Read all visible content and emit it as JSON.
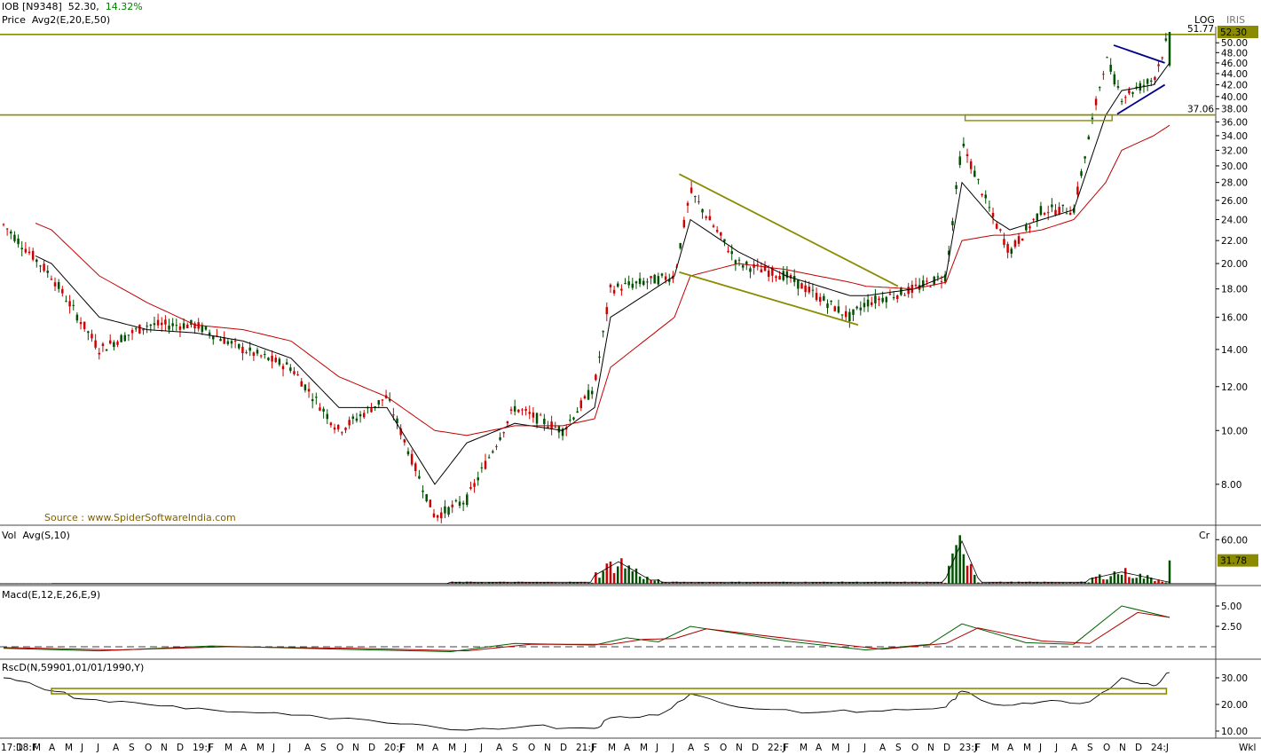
{
  "header": {
    "symbol": "IOB [N9348]",
    "last": "52.30,",
    "change": "14.32%",
    "price_label": "Price",
    "avg_label": "Avg2(E,20,E,50)",
    "scale_log": "LOG",
    "scale_iris": "IRIS"
  },
  "source_note": "Source : www.SpiderSoftwareIndia.com",
  "panels": {
    "volume": {
      "label": "Vol",
      "avg": "Avg(S,10)",
      "unit": "Cr",
      "tick": "60.00",
      "last_badge": "31.78"
    },
    "macd": {
      "label": "Macd(E,12,E,26,E,9)",
      "ticks": [
        "5.00",
        "2.50"
      ]
    },
    "rsc": {
      "label": "RscD(N,59901,01/01/1990,Y)",
      "ticks": [
        "30.00",
        "20.00",
        "10.00"
      ]
    }
  },
  "badges": {
    "last_price": "52.30",
    "level_top": "51.77",
    "level_bottom": "37.06"
  },
  "price_ticks": [
    "50.00",
    "48.00",
    "46.00",
    "44.00",
    "42.00",
    "40.00",
    "38.00",
    "36.00",
    "34.00",
    "32.00",
    "30.00",
    "28.00",
    "26.00",
    "24.00",
    "22.00",
    "20.00",
    "18.00",
    "16.00",
    "14.00",
    "12.00",
    "10.00",
    "8.00"
  ],
  "x_labels": [
    "17:D",
    "18:F",
    "M",
    "A",
    "M",
    "J",
    "J",
    "A",
    "S",
    "O",
    "N",
    "D",
    "19:J",
    "F",
    "M",
    "A",
    "M",
    "J",
    "J",
    "A",
    "S",
    "O",
    "N",
    "D",
    "20:J",
    "F",
    "M",
    "A",
    "M",
    "J",
    "J",
    "A",
    "S",
    "O",
    "N",
    "D",
    "21:J",
    "F",
    "M",
    "A",
    "M",
    "J",
    "J",
    "A",
    "S",
    "O",
    "N",
    "D",
    "22:J",
    "F",
    "M",
    "A",
    "M",
    "J",
    "J",
    "A",
    "S",
    "O",
    "N",
    "D",
    "23:J",
    "F",
    "M",
    "A",
    "M",
    "J",
    "J",
    "A",
    "S",
    "O",
    "N",
    "D",
    "24:J"
  ],
  "x_suffix": "Wkl",
  "colors": {
    "up": "#005000",
    "down": "#d00000",
    "ema20": "#000000",
    "ema50": "#c00000",
    "trend": "#8b8b00",
    "triangle": "#00008b"
  },
  "chart_data": {
    "type": "candlestick",
    "title": "IOB [N9348]",
    "scale": "log",
    "ylim": [
      6.8,
      52.3
    ],
    "x_range": [
      "2017-12",
      "2024-01"
    ],
    "frequency": "weekly",
    "horizontal_levels": [
      51.77,
      37.06
    ],
    "close_path": {
      "x": [
        "2017-12",
        "2018-03",
        "2018-06",
        "2018-09",
        "2018-12",
        "2019-03",
        "2019-06",
        "2019-09",
        "2019-12",
        "2020-03",
        "2020-05",
        "2020-08",
        "2020-11",
        "2021-01",
        "2021-02",
        "2021-06",
        "2021-07",
        "2021-10",
        "2022-01",
        "2022-05",
        "2022-06",
        "2022-09",
        "2022-11",
        "2022-12",
        "2023-02",
        "2023-03",
        "2023-05",
        "2023-07",
        "2023-09",
        "2023-10",
        "2023-12",
        "2024-01"
      ],
      "y": [
        23.5,
        19,
        14,
        15.5,
        15.5,
        14,
        13,
        10,
        11.5,
        7,
        7.5,
        11,
        10,
        12,
        18,
        19,
        27,
        20,
        19,
        16,
        17,
        18,
        19,
        33,
        24,
        21,
        25,
        25,
        47,
        40,
        43,
        52.3
      ]
    },
    "ema20_path": [
      22,
      20,
      16,
      15.2,
      15,
      14.5,
      13.5,
      11,
      11,
      8,
      9.5,
      10.3,
      10,
      11,
      16,
      19,
      24,
      21,
      19,
      17.5,
      17.5,
      18,
      19,
      28,
      24,
      23,
      24,
      25,
      37,
      41,
      42,
      46
    ],
    "ema50_path": [
      25,
      23,
      19,
      17,
      15.5,
      15.2,
      14.5,
      12.5,
      11.5,
      10,
      9.8,
      10.2,
      10.2,
      10.5,
      13,
      16,
      19,
      20,
      19.5,
      18.5,
      18.2,
      18,
      18.5,
      22,
      22.5,
      22.5,
      23,
      24,
      28,
      32,
      34,
      35.5
    ],
    "volume": {
      "unit": "Cr",
      "ylim": [
        0,
        70
      ],
      "last": 31.78
    },
    "macd": {
      "ylim": [
        -1.2,
        6.2
      ],
      "macd_last": 3.6,
      "signal_last": 3.6
    },
    "rsc": {
      "ylim": [
        8,
        34
      ],
      "last": 32
    }
  }
}
